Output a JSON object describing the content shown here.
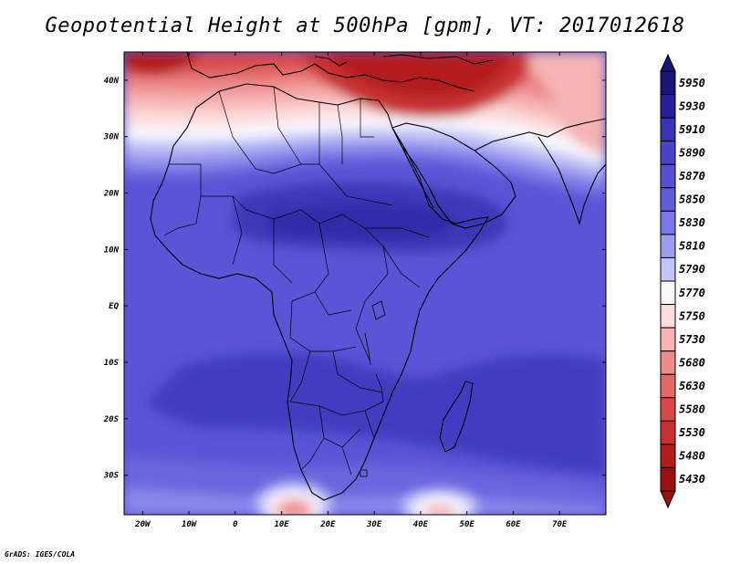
{
  "title": "Geopotential Height at 500hPa [gpm], VT: 2017012618",
  "credit": "GrADS: IGES/COLA",
  "map": {
    "lon_range": [
      -24,
      80
    ],
    "lat_range": [
      -37,
      45
    ],
    "lon_ticks": [
      "20W",
      "10W",
      "0",
      "10E",
      "20E",
      "30E",
      "40E",
      "50E",
      "60E",
      "70E"
    ],
    "lat_ticks": [
      "40N",
      "30N",
      "20N",
      "10N",
      "EQ",
      "10S",
      "20S",
      "30S"
    ]
  },
  "colorbar": {
    "levels": [
      "5950",
      "5930",
      "5910",
      "5890",
      "5870",
      "5850",
      "5830",
      "5810",
      "5790",
      "5770",
      "5750",
      "5730",
      "5680",
      "5630",
      "5580",
      "5530",
      "5480",
      "5430"
    ],
    "colors": [
      "#1e1478",
      "#2a1f9a",
      "#3a32b4",
      "#4a43c8",
      "#5550d2",
      "#615cdc",
      "#7a78e6",
      "#9c9cf0",
      "#c4c4f8",
      "#f8f8ff",
      "#fcdcdc",
      "#f6b4b4",
      "#ee8c8c",
      "#e26868",
      "#d84848",
      "#c83030",
      "#b41c1c",
      "#9c1010"
    ]
  }
}
